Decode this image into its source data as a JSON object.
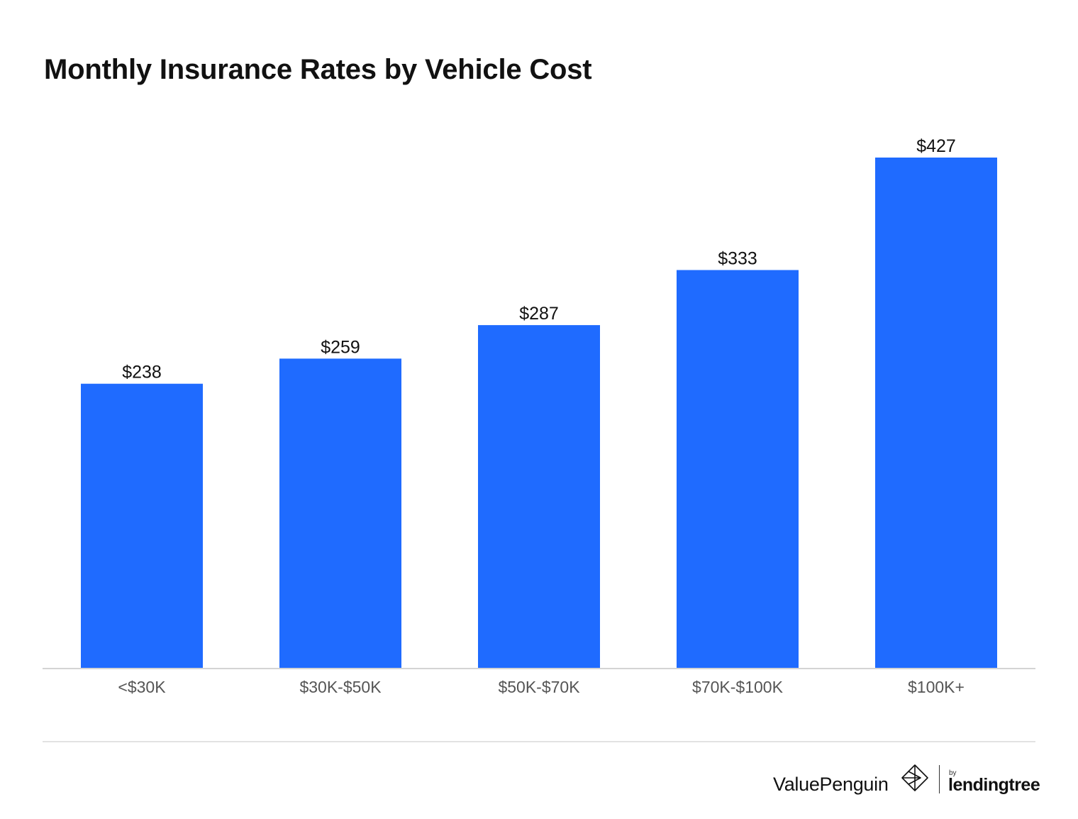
{
  "chart_data": {
    "type": "bar",
    "title": "Monthly Insurance Rates by Vehicle Cost",
    "categories": [
      "<$30K",
      "$30K-$50K",
      "$50K-$70K",
      "$70K-$100K",
      "$100K+"
    ],
    "values": [
      238,
      259,
      287,
      333,
      427
    ],
    "data_labels": [
      "$238",
      "$259",
      "$287",
      "$333",
      "$427"
    ],
    "xlabel": "",
    "ylabel": "",
    "ylim": [
      0,
      427
    ],
    "grid": false,
    "legend": "none",
    "bar_color": "#1f6bff"
  },
  "branding": {
    "brand": "ValuePenguin",
    "by": "by",
    "partner": "lendingtree",
    "brand_icon": "valuepenguin-logo-icon"
  }
}
